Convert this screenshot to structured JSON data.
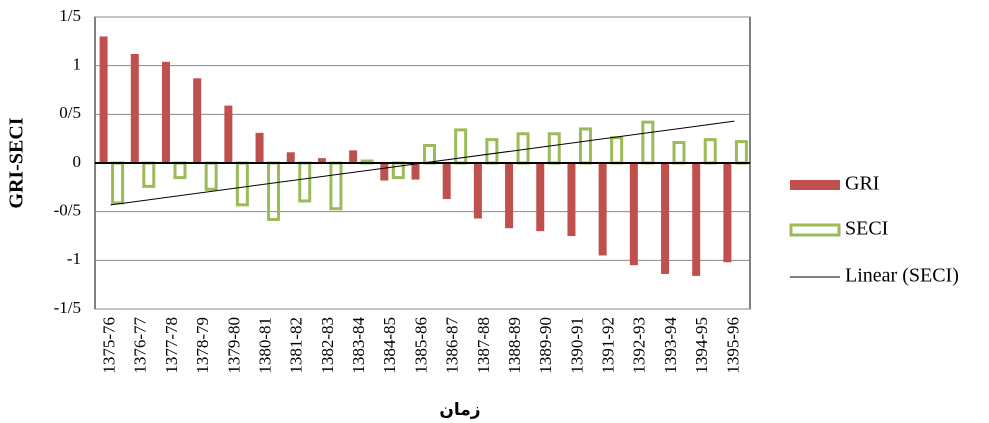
{
  "chart_data": {
    "type": "bar",
    "x_label": "زمان",
    "y_label": "GRI-SECI",
    "categories": [
      "1375-76",
      "1376-77",
      "1377-78",
      "1378-79",
      "1379-80",
      "1380-81",
      "1381-82",
      "1382-83",
      "1383-84",
      "1384-85",
      "1385-86",
      "1386-87",
      "1387-88",
      "1388-89",
      "1389-90",
      "1390-91",
      "1391-92",
      "1392-93",
      "1393-94",
      "1394-95",
      "1395-96"
    ],
    "series": [
      {
        "name": "GRI",
        "color": "#c0504d",
        "style": "filled",
        "values": [
          1.3,
          1.12,
          1.04,
          0.87,
          0.59,
          0.31,
          0.11,
          0.05,
          0.13,
          -0.18,
          -0.17,
          -0.37,
          -0.57,
          -0.67,
          -0.7,
          -0.75,
          -0.95,
          -1.05,
          -1.14,
          -1.16,
          -1.02
        ]
      },
      {
        "name": "SECI",
        "color": "#9bbb59",
        "style": "outline",
        "values": [
          -0.41,
          -0.24,
          -0.15,
          -0.27,
          -0.43,
          -0.58,
          -0.39,
          -0.47,
          0.02,
          -0.15,
          0.18,
          0.34,
          0.24,
          0.3,
          0.3,
          0.35,
          0.26,
          0.42,
          0.21,
          0.24,
          0.22
        ]
      }
    ],
    "trendline": {
      "name": "Linear (SECI)",
      "of_series": 1,
      "color": "#000000"
    },
    "ylim": [
      -1.5,
      1.5
    ],
    "yticks": [
      {
        "value": -1.5,
        "label": "-1/5"
      },
      -1,
      {
        "value": -0.5,
        "label": "-0/5"
      },
      0,
      {
        "value": 0.5,
        "label": "0/5"
      },
      1,
      {
        "value": 1.5,
        "label": "1/5"
      }
    ],
    "grid": true
  }
}
